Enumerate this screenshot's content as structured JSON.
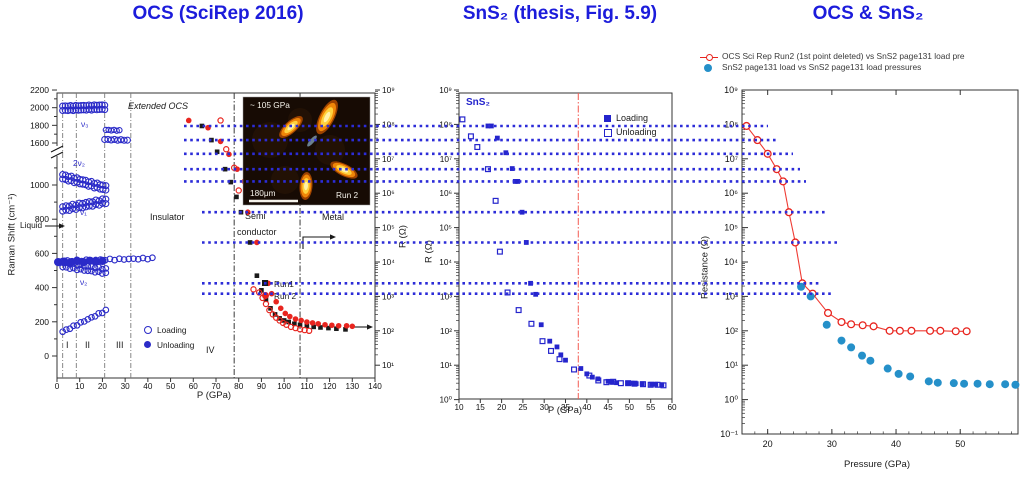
{
  "titles": {
    "left": "OCS (SciRep 2016)",
    "middle": "SnS₂ (thesis, Fig. 5.9)",
    "right": "OCS & SnS₂"
  },
  "colors": {
    "title": "#1c1cdb",
    "raman_blue": "#2b2bc8",
    "marker_blue": "#2424cc",
    "red": "#e8251f",
    "red_line": "#ef3b33",
    "black": "#1a1a1a",
    "dot_line": "#2c2cd8",
    "sns2_teal": "#2590c9",
    "frame": "#333333"
  },
  "right_legend": {
    "line1": "OCS Sci Rep Run2 (1st point deleted) vs SnS2 page131 load pre",
    "line2": "SnS2 page131 load vs SnS2 page131 load pressures"
  },
  "overlay": {
    "link_values": [
      90000000.0,
      35000000.0,
      14000000.0,
      5000000.0,
      2200000.0,
      280000.0,
      37000.0,
      2400.0,
      1200.0
    ]
  },
  "chart_data": [
    {
      "type": "scatter",
      "panel": "OCS SciRep 2016",
      "xlabel": "P (GPa)",
      "ylabel_left": "Raman Shift (cm⁻¹)",
      "ylabel_right": "R (Ω)",
      "xlim": [
        0,
        140
      ],
      "x_ticks": [
        0,
        10,
        20,
        30,
        40,
        50,
        60,
        70,
        80,
        90,
        100,
        110,
        120,
        130,
        140
      ],
      "raman_ticks": [
        {
          "v": 2200,
          "t": "2200"
        },
        {
          "v": 2000,
          "t": "2000"
        },
        {
          "v": 1800,
          "t": "1800"
        },
        {
          "v": 1600,
          "t": "1600"
        },
        {
          "v": 1000,
          "t": "1000"
        },
        {
          "v": 800,
          "t": "800"
        },
        {
          "v": 600,
          "t": "600"
        },
        {
          "v": 400,
          "t": "400"
        },
        {
          "v": 200,
          "t": "200"
        },
        {
          "v": 0,
          "t": "0"
        }
      ],
      "r_ticks": [
        {
          "e": 9,
          "t": "10⁹"
        },
        {
          "e": 8,
          "t": "10⁸"
        },
        {
          "e": 7,
          "t": "10⁷"
        },
        {
          "e": 6,
          "t": "10⁶"
        },
        {
          "e": 5,
          "t": "10⁵"
        },
        {
          "e": 4,
          "t": "10⁴"
        },
        {
          "e": 3,
          "t": "10³"
        },
        {
          "e": 2,
          "t": "10²"
        },
        {
          "e": 1,
          "t": "10¹"
        }
      ],
      "phase_boundaries_gpa": [
        2.5,
        8.5,
        21,
        32.5
      ],
      "transition_lines_gpa": [
        78,
        107
      ],
      "annotations": {
        "region_label": "Extended OCS",
        "insulator": "Insulator",
        "semi": "Semi",
        "conductor": "conductor",
        "metal": "Metal",
        "liquid": "Liquid",
        "phases": [
          "I",
          "II",
          "III",
          "IV"
        ],
        "modes": [
          "ν₃",
          "2ν₂",
          "ν₁",
          "ν₂"
        ]
      },
      "legend_raman": {
        "loading": "Loading",
        "unloading": "Unloading"
      },
      "legend_resistance": {
        "run1": "Run1",
        "run2": "Run 2"
      },
      "raman_branches": [
        {
          "name": "nu3",
          "p": [
            2.5,
            21
          ],
          "w": [
            1993,
            2006
          ],
          "n": 17,
          "style": "open",
          "r": 3,
          "rows": 2
        },
        {
          "name": "nu3-seg2",
          "p": [
            21.5,
            27.5
          ],
          "w": [
            1748,
            1742
          ],
          "n": 6,
          "style": "open",
          "r": 2.6,
          "rows": 1
        },
        {
          "name": "nu3-seg3",
          "p": [
            21,
            31
          ],
          "w": [
            1640,
            1632
          ],
          "n": 8,
          "style": "open",
          "r": 3,
          "rows": 1
        },
        {
          "name": "2nu2",
          "p": [
            2.5,
            21.5
          ],
          "w": [
            1048,
            982
          ],
          "n": 16,
          "style": "open",
          "r": 3,
          "rows": 2
        },
        {
          "name": "nu1",
          "p": [
            2.5,
            21.5
          ],
          "w": [
            860,
            906
          ],
          "n": 14,
          "style": "open",
          "r": 3,
          "rows": 2
        },
        {
          "name": "560-loading",
          "p": [
            2.5,
            42
          ],
          "w": [
            556,
            571
          ],
          "n": 20,
          "style": "open",
          "r": 2.8,
          "rows": 1
        },
        {
          "name": "560-unloading",
          "p": [
            0.5,
            20
          ],
          "w": [
            549,
            556
          ],
          "n": 8,
          "style": "filled",
          "r": 3.6,
          "rows": 1
        },
        {
          "name": "nu2",
          "p": [
            2.5,
            21.5
          ],
          "w": [
            533,
            496
          ],
          "n": 13,
          "style": "open",
          "r": 2.8,
          "rows": 2
        },
        {
          "name": "lattice",
          "p": [
            2.5,
            21.5
          ],
          "w": [
            142,
            266
          ],
          "n": 13,
          "style": "open",
          "r": 2.8,
          "rows": 1
        }
      ],
      "resistance_run1": [
        [
          63.8,
          90000000.0
        ],
        [
          68,
          35000000.0
        ],
        [
          70.5,
          16000000.0
        ],
        [
          74,
          5000000.0
        ],
        [
          76.5,
          2100000.0
        ],
        [
          79,
          780000.0
        ],
        [
          81,
          280000.0
        ],
        [
          85,
          37000.0
        ],
        [
          88,
          4000.0
        ],
        [
          90,
          1500.0
        ],
        [
          92,
          800.0
        ],
        [
          94,
          450.0
        ],
        [
          96,
          300.0
        ],
        [
          98,
          230.0
        ],
        [
          100,
          200.0
        ],
        [
          102,
          180.0
        ],
        [
          104.5,
          160.0
        ],
        [
          107,
          150.0
        ],
        [
          110,
          140.0
        ],
        [
          113,
          130.0
        ],
        [
          116,
          125.0
        ],
        [
          119.5,
          120.0
        ],
        [
          123,
          115.0
        ],
        [
          127,
          110.0
        ]
      ],
      "resistance_run2": [
        [
          58,
          130000000.0
        ],
        [
          66.5,
          80000000.0
        ],
        [
          72,
          32000000.0
        ],
        [
          75.7,
          13500000.0
        ],
        [
          79.3,
          5000000.0
        ],
        [
          82.4,
          2200000.0
        ],
        [
          84,
          280000.0
        ],
        [
          88,
          37000.0
        ],
        [
          93,
          2400.0
        ],
        [
          94.5,
          1200.0
        ],
        [
          96.5,
          700.0
        ],
        [
          98.5,
          450.0
        ],
        [
          100.5,
          320.0
        ],
        [
          102.5,
          260.0
        ],
        [
          105,
          220.0
        ],
        [
          107.5,
          200.0
        ],
        [
          110,
          180.0
        ],
        [
          112.5,
          170.0
        ],
        [
          115,
          160.0
        ],
        [
          118,
          150.0
        ],
        [
          121,
          145.0
        ],
        [
          124,
          140.0
        ],
        [
          127.5,
          140.0
        ],
        [
          130,
          135.0
        ]
      ],
      "resistance_run2_unload": [
        [
          72,
          130000000.0
        ],
        [
          74.5,
          19000000.0
        ],
        [
          78,
          5500000.0
        ],
        [
          80,
          1200000.0
        ],
        [
          86.5,
          1600.0
        ],
        [
          89,
          1300.0
        ],
        [
          90.5,
          900.0
        ],
        [
          92,
          600.0
        ],
        [
          93.5,
          400.0
        ],
        [
          95,
          300.0
        ],
        [
          96.5,
          240.0
        ],
        [
          98,
          200.0
        ],
        [
          99.5,
          170.0
        ],
        [
          101,
          150.0
        ],
        [
          103,
          130.0
        ],
        [
          105,
          120.0
        ],
        [
          107,
          110.0
        ],
        [
          109,
          105.0
        ],
        [
          111,
          100.0
        ]
      ],
      "inset": {
        "pressure": "~ 105 GPa",
        "scale": "180μm",
        "run": "Run 2"
      }
    },
    {
      "type": "scatter",
      "panel": "SnS2 thesis Fig 5.9",
      "label": "SnS₂",
      "xlabel": "P (GPa)",
      "ylabel": "R (Ω)",
      "xlim": [
        10,
        60
      ],
      "x_ticks": [
        10,
        15,
        20,
        25,
        30,
        35,
        40,
        45,
        50,
        55,
        60
      ],
      "y_ticks": [
        {
          "e": 9,
          "t": "10⁹"
        },
        {
          "e": 8,
          "t": "10⁸"
        },
        {
          "e": 7,
          "t": "10⁷"
        },
        {
          "e": 6,
          "t": "10⁶"
        },
        {
          "e": 5,
          "t": "10⁵"
        },
        {
          "e": 4,
          "t": "10⁴"
        },
        {
          "e": 3,
          "t": "10³"
        },
        {
          "e": 2,
          "t": "10²"
        },
        {
          "e": 1,
          "t": "10¹"
        },
        {
          "e": 0,
          "t": "10⁰"
        }
      ],
      "legend": {
        "loading": "Loading",
        "unloading": "Unloading"
      },
      "vline_gpa": 38,
      "loading": [
        [
          16.8,
          90000000.0
        ],
        [
          17.6,
          90000000.0
        ],
        [
          19,
          40000000.0
        ],
        [
          21,
          15000000.0
        ],
        [
          22.5,
          5200000.0
        ],
        [
          23.2,
          2200000.0
        ],
        [
          23.8,
          2200000.0
        ],
        [
          24.8,
          280000.0
        ],
        [
          25.8,
          37000.0
        ],
        [
          26.8,
          2400.0
        ],
        [
          28,
          1150.0
        ],
        [
          29.3,
          150.0
        ],
        [
          31.3,
          50.0
        ],
        [
          33,
          34.0
        ],
        [
          33.9,
          20.0
        ],
        [
          35,
          14.0
        ],
        [
          38.6,
          8
        ],
        [
          40,
          5.6
        ],
        [
          41.3,
          4.5
        ],
        [
          42.6,
          4
        ],
        [
          45,
          3.4
        ],
        [
          45.9,
          3.2
        ],
        [
          47,
          3.1
        ],
        [
          49.6,
          3
        ],
        [
          50.6,
          3
        ],
        [
          51.6,
          2.9
        ],
        [
          53,
          2.9
        ],
        [
          55.2,
          2.8
        ],
        [
          56.2,
          2.8
        ],
        [
          57.6,
          2.7
        ]
      ],
      "unloading": [
        [
          10.8,
          140000000.0
        ],
        [
          12.8,
          45000000.0
        ],
        [
          14.3,
          22000000.0
        ],
        [
          16.8,
          5000000.0
        ],
        [
          18.6,
          600000.0
        ],
        [
          19.6,
          20000.0
        ],
        [
          21.4,
          1300.0
        ],
        [
          24,
          400.0
        ],
        [
          27,
          160.0
        ],
        [
          29.6,
          50.0
        ],
        [
          31.6,
          26.0
        ],
        [
          33.6,
          15.0
        ],
        [
          37,
          7.5
        ],
        [
          40.6,
          5
        ],
        [
          42.7,
          3.6
        ],
        [
          44.6,
          3.2
        ],
        [
          46.2,
          3.3
        ],
        [
          48,
          3
        ],
        [
          49.7,
          3
        ],
        [
          51.2,
          2.9
        ],
        [
          53.2,
          2.8
        ],
        [
          55,
          2.7
        ],
        [
          56.6,
          2.7
        ],
        [
          58,
          2.6
        ]
      ]
    },
    {
      "type": "scatter",
      "panel": "OCS and SnS2 combined",
      "xlabel": "Pressure (GPa)",
      "ylabel": "Resistance (Ω)",
      "xlim": [
        16,
        59
      ],
      "x_ticks": [
        20,
        30,
        40,
        50
      ],
      "y_ticks": [
        {
          "e": 9,
          "t": "10⁹"
        },
        {
          "e": 8,
          "t": "10⁸"
        },
        {
          "e": 7,
          "t": "10⁷"
        },
        {
          "e": 6,
          "t": "10⁶"
        },
        {
          "e": 5,
          "t": "10⁵"
        },
        {
          "e": 4,
          "t": "10⁴"
        },
        {
          "e": 3,
          "t": "10³"
        },
        {
          "e": 2,
          "t": "10²"
        },
        {
          "e": 1,
          "t": "10¹"
        },
        {
          "e": 0,
          "t": "10⁰"
        },
        {
          "e": -1,
          "t": "10⁻¹"
        }
      ],
      "ocs_run2": [
        [
          16.7,
          90000000.0
        ],
        [
          18.4,
          35000000.0
        ],
        [
          20,
          14000000.0
        ],
        [
          21.4,
          5000000.0
        ],
        [
          22.4,
          2200000.0
        ],
        [
          23.3,
          280000.0
        ],
        [
          24.3,
          37000.0
        ],
        [
          25.4,
          2400.0
        ],
        [
          27,
          1200.0
        ],
        [
          29.4,
          330.0
        ],
        [
          31.5,
          180.0
        ],
        [
          33,
          155.0
        ],
        [
          34.8,
          145.0
        ],
        [
          36.5,
          135.0
        ],
        [
          39,
          100.0
        ],
        [
          40.6,
          100.0
        ],
        [
          42.4,
          100.0
        ],
        [
          45.3,
          100.0
        ],
        [
          46.9,
          100.0
        ],
        [
          49.3,
          97.0
        ],
        [
          51,
          97.0
        ]
      ],
      "sns2_load": [
        [
          25.2,
          1900.0
        ],
        [
          26.7,
          1000.0
        ],
        [
          29.2,
          150.0
        ],
        [
          31.5,
          52.0
        ],
        [
          33,
          33.0
        ],
        [
          34.7,
          19.0
        ],
        [
          36,
          13.5
        ],
        [
          38.7,
          8
        ],
        [
          40.4,
          5.6
        ],
        [
          42.2,
          4.7
        ],
        [
          45.1,
          3.4
        ],
        [
          46.5,
          3.1
        ],
        [
          49,
          3
        ],
        [
          50.6,
          2.9
        ],
        [
          52.7,
          2.9
        ],
        [
          54.6,
          2.8
        ],
        [
          57,
          2.8
        ],
        [
          58.6,
          2.7
        ]
      ]
    }
  ]
}
